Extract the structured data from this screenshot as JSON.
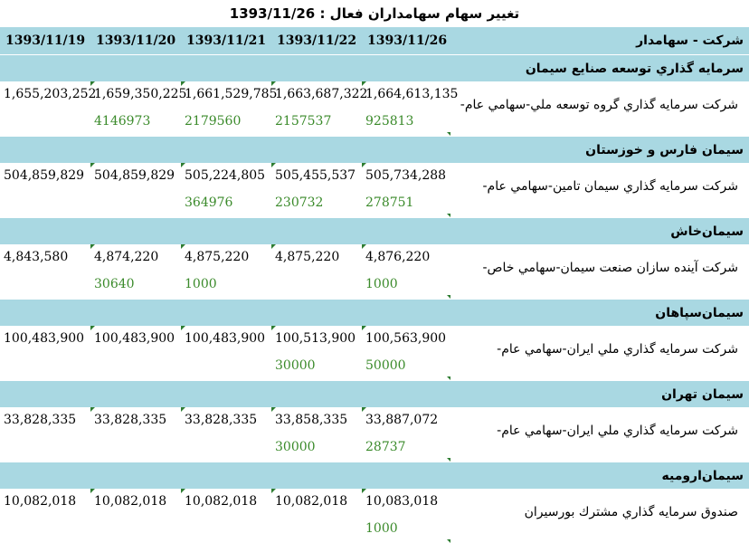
{
  "title": "تغيير سهام سهامداران فعال : 1393/11/26",
  "header": {
    "company_holder": "شركت - سهامدار",
    "dates": [
      "1393/11/19",
      "1393/11/20",
      "1393/11/21",
      "1393/11/22",
      "1393/11/26"
    ]
  },
  "colors": {
    "header_bg": "#a9d8e2",
    "change_text": "#3a8a2a",
    "marker": "#2e7d32"
  },
  "groups": [
    {
      "name": "سرمايه گذاري توسعه صنايع سيمان",
      "holder": "شركت سرمايه گذاري گروه توسعه ملي-سهامي عام-",
      "values": [
        "1,655,203,252",
        "1,659,350,225",
        "1,661,529,785",
        "1,663,687,322",
        "1,664,613,135"
      ],
      "changes": [
        "",
        "4146973",
        "2179560",
        "2157537",
        "925813"
      ]
    },
    {
      "name": "سيمان فارس و خوزستان",
      "holder": "شركت سرمايه گذاري سيمان تامين-سهامي عام-",
      "values": [
        "504,859,829",
        "504,859,829",
        "505,224,805",
        "505,455,537",
        "505,734,288"
      ],
      "changes": [
        "",
        "",
        "364976",
        "230732",
        "278751"
      ]
    },
    {
      "name": "سيمان‌خاش",
      "holder": "شركت آينده سازان صنعت سيمان-سهامي خاص-",
      "values": [
        "4,843,580",
        "4,874,220",
        "4,875,220",
        "4,875,220",
        "4,876,220"
      ],
      "changes": [
        "",
        "30640",
        "1000",
        "",
        "1000"
      ]
    },
    {
      "name": "سيمان‌سپاهان",
      "holder": "شركت سرمايه گذاري ملي ايران-سهامي عام-",
      "values": [
        "100,483,900",
        "100,483,900",
        "100,483,900",
        "100,513,900",
        "100,563,900"
      ],
      "changes": [
        "",
        "",
        "",
        "30000",
        "50000"
      ]
    },
    {
      "name": "سيمان تهران",
      "holder": "شركت سرمايه گذاري ملي ايران-سهامي عام-",
      "values": [
        "33,828,335",
        "33,828,335",
        "33,828,335",
        "33,858,335",
        "33,887,072"
      ],
      "changes": [
        "",
        "",
        "",
        "30000",
        "28737"
      ]
    },
    {
      "name": "سيمان‌اروميه",
      "holder": "صندوق سرمايه گذاري مشترك بورسيران",
      "values": [
        "10,082,018",
        "10,082,018",
        "10,082,018",
        "10,082,018",
        "10,083,018"
      ],
      "changes": [
        "",
        "",
        "",
        "",
        "1000"
      ]
    }
  ]
}
